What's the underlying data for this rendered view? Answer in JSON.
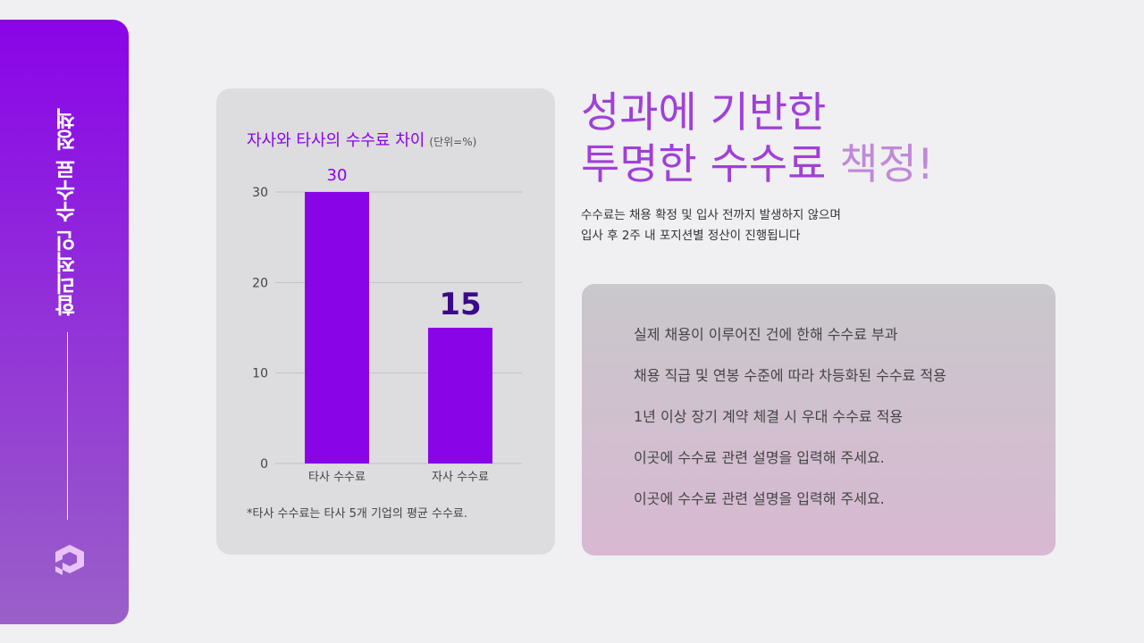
{
  "sidebar": {
    "title": "합리적인 수수료 정책",
    "logo_icon": "brand-logo-icon",
    "color_top": "#8a04e8",
    "color_bottom": "#9a60c8"
  },
  "chart_card": {
    "title_main": "자사와 타사의 수수료 차이",
    "title_unit": "(단위=%)",
    "note": "*타사 수수료는 타사 5개 기업의 평균 수수료."
  },
  "headline": {
    "line1": "성과에 기반한",
    "line2_a": "투명한 수수료",
    "line2_b": "책정!"
  },
  "subtext": {
    "line1": "수수료는 채용 확정 및 입사 전까지 발생하지 않으며",
    "line2": "입사 후 2주 내 포지션별 정산이 진행됩니다"
  },
  "info": {
    "items": [
      "실제 채용이 이루어진 건에 한해 수수료 부과",
      "채용 직급 및 연봉 수준에 따라 차등화된 수수료 적용",
      "1년 이상 장기 계약 체결 시 우대 수수료 적용",
      "이곳에 수수료 관련 설명을 입력해 주세요.",
      "이곳에 수수료 관련 설명을 입력해 주세요."
    ]
  },
  "chart_data": {
    "type": "bar",
    "title": "자사와 타사의 수수료 차이 (단위=%)",
    "categories": [
      "타사 수수료",
      "자사 수수료"
    ],
    "values": [
      30,
      15
    ],
    "data_labels": [
      "30",
      "15"
    ],
    "yticks": [
      0,
      10,
      20,
      30
    ],
    "ylim": [
      0,
      30
    ],
    "grid": true,
    "bar_color": "#8a04e8",
    "label_colors": [
      "#8a04e8",
      "#3a0a8a"
    ]
  }
}
